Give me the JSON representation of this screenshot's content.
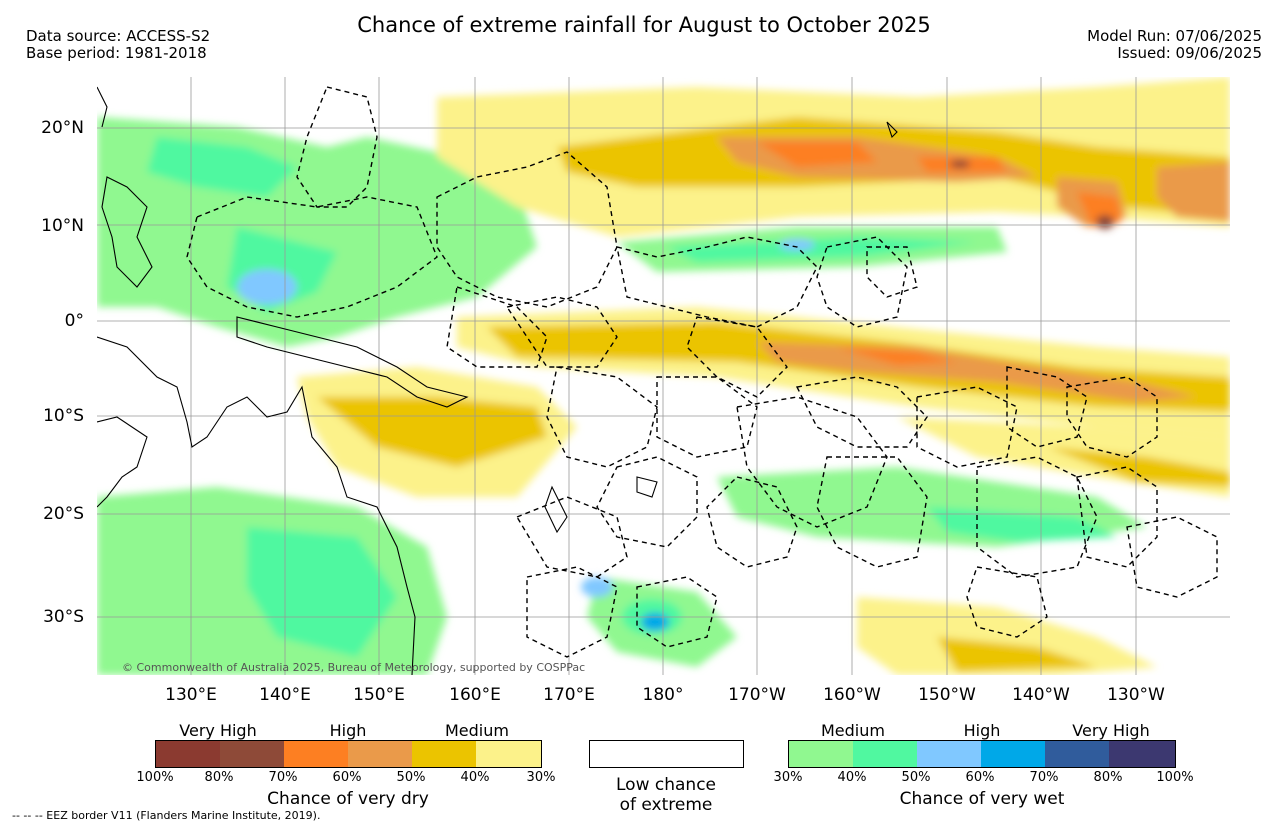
{
  "header": {
    "title": "Chance of extreme rainfall for August to October 2025",
    "data_source": "Data source: ACCESS-S2",
    "base_period": "Base period: 1981-2018",
    "model_run": "Model Run: 07/06/2025",
    "issued": "Issued: 09/06/2025"
  },
  "map": {
    "lat_labels": [
      "20°N",
      "10°N",
      "0°",
      "10°S",
      "20°S",
      "30°S"
    ],
    "lon_labels": [
      "130°E",
      "140°E",
      "150°E",
      "160°E",
      "170°E",
      "180°",
      "170°W",
      "160°W",
      "150°W",
      "140°W",
      "130°W"
    ],
    "credit": "© Commonwealth of Australia 2025, Bureau of Meteorology, supported by COSPPac",
    "colors": {
      "dry_50_40": "#ebc400",
      "dry_40_30": "#fcf28a",
      "dry_60_50": "#ea9a4a",
      "dry_70_60": "#fd7f22",
      "dry_80_70": "#8b4a38",
      "wet_30_40": "#90f890",
      "wet_40_50": "#50f8a0",
      "wet_50_60": "#80c8ff",
      "wet_60_70": "#00a8e8"
    }
  },
  "legend": {
    "dry": {
      "categories": [
        "Very High",
        "High",
        "Medium"
      ],
      "colors": [
        "#8b3a30",
        "#8e4a38",
        "#fd7f22",
        "#ea9a4a",
        "#ebc400",
        "#fcf28a"
      ],
      "ticks": [
        "100%",
        "80%",
        "70%",
        "60%",
        "50%",
        "40%",
        "30%"
      ],
      "label": "Chance of very dry"
    },
    "neutral": {
      "label_line1": "Low chance",
      "label_line2": "of extreme"
    },
    "wet": {
      "categories": [
        "Medium",
        "High",
        "Very High"
      ],
      "colors": [
        "#90f890",
        "#50f8a0",
        "#80c8ff",
        "#00a8e8",
        "#305c9c",
        "#3c3870"
      ],
      "ticks": [
        "30%",
        "40%",
        "50%",
        "60%",
        "70%",
        "80%",
        "100%"
      ],
      "label": "Chance of very wet"
    }
  },
  "footnote": "--  --  -- EEZ border V11 (Flanders Marine Institute, 2019)."
}
